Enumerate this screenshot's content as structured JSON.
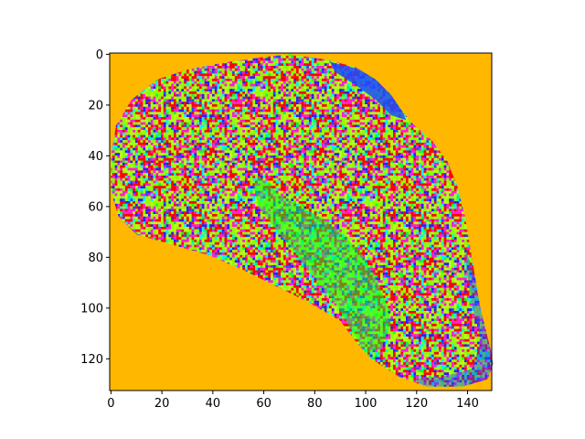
{
  "chart_data": {
    "type": "heatmap",
    "title": "",
    "xlabel": "",
    "ylabel": "",
    "grid": false,
    "legend": "none",
    "n_cols": 150,
    "n_rows": 133,
    "xlim": [
      -0.5,
      149.5
    ],
    "ylim": [
      132.5,
      -0.5
    ],
    "x_ticks": [
      0,
      20,
      40,
      60,
      80,
      100,
      120,
      140
    ],
    "y_ticks": [
      0,
      20,
      40,
      60,
      80,
      100,
      120
    ],
    "x_tick_labels": [
      "0",
      "20",
      "40",
      "60",
      "80",
      "100",
      "120",
      "140"
    ],
    "y_tick_labels": [
      "0",
      "20",
      "40",
      "60",
      "80",
      "100",
      "120"
    ],
    "colors": {
      "background": "#ffb700",
      "palette": [
        "#ff0000",
        "#ff1ad9",
        "#8cff00",
        "#2e1aff",
        "#00f2ff",
        "#1a4dff",
        "#00ff2e",
        "#b4ff1a"
      ]
    },
    "regions": {
      "outer_boundary": [
        [
          70,
          0
        ],
        [
          84,
          2
        ],
        [
          96,
          5
        ],
        [
          104,
          10
        ],
        [
          110,
          16
        ],
        [
          114,
          22
        ],
        [
          118,
          27
        ],
        [
          126,
          34
        ],
        [
          132,
          42
        ],
        [
          136,
          52
        ],
        [
          139,
          64
        ],
        [
          141,
          76
        ],
        [
          143,
          88
        ],
        [
          145,
          100
        ],
        [
          147,
          108
        ],
        [
          149,
          116
        ],
        [
          150,
          122
        ],
        [
          148,
          128
        ],
        [
          138,
          131
        ],
        [
          124,
          131
        ],
        [
          113,
          127
        ],
        [
          102,
          120
        ],
        [
          96,
          113
        ],
        [
          90,
          105
        ],
        [
          78,
          98
        ],
        [
          64,
          91
        ],
        [
          52,
          85
        ],
        [
          38,
          79
        ],
        [
          24,
          75
        ],
        [
          10,
          71
        ],
        [
          3,
          64
        ],
        [
          0,
          54
        ],
        [
          0,
          40
        ],
        [
          2,
          28
        ],
        [
          8,
          18
        ],
        [
          18,
          10
        ],
        [
          30,
          6
        ],
        [
          46,
          3
        ],
        [
          60,
          1
        ]
      ],
      "blue_cap": [
        [
          86,
          3
        ],
        [
          98,
          6
        ],
        [
          106,
          11
        ],
        [
          111,
          16
        ],
        [
          114,
          22
        ],
        [
          116,
          26
        ],
        [
          110,
          24
        ],
        [
          104,
          18
        ],
        [
          96,
          12
        ],
        [
          88,
          7
        ]
      ],
      "blue_right_edge": [
        [
          139,
          76
        ],
        [
          143,
          88
        ],
        [
          146,
          100
        ],
        [
          149,
          114
        ],
        [
          150,
          122
        ],
        [
          148,
          128
        ],
        [
          138,
          131
        ],
        [
          124,
          131
        ],
        [
          118,
          128
        ],
        [
          130,
          127
        ],
        [
          142,
          124
        ],
        [
          145,
          112
        ],
        [
          142,
          100
        ],
        [
          140,
          88
        ]
      ],
      "blue_left_edge": [
        [
          6,
          67
        ],
        [
          12,
          72
        ],
        [
          22,
          75
        ],
        [
          34,
          78
        ],
        [
          46,
          83
        ],
        [
          58,
          88
        ],
        [
          70,
          94
        ],
        [
          72,
          96
        ],
        [
          60,
          92
        ],
        [
          48,
          87
        ],
        [
          36,
          83
        ],
        [
          22,
          79
        ],
        [
          10,
          76
        ],
        [
          4,
          72
        ]
      ],
      "green_core": [
        [
          58,
          48
        ],
        [
          66,
          55
        ],
        [
          74,
          60
        ],
        [
          82,
          64
        ],
        [
          90,
          70
        ],
        [
          98,
          78
        ],
        [
          104,
          88
        ],
        [
          108,
          98
        ],
        [
          110,
          106
        ],
        [
          106,
          116
        ],
        [
          100,
          118
        ],
        [
          94,
          108
        ],
        [
          88,
          98
        ],
        [
          80,
          88
        ],
        [
          72,
          78
        ],
        [
          64,
          68
        ],
        [
          58,
          60
        ],
        [
          56,
          52
        ]
      ]
    }
  }
}
